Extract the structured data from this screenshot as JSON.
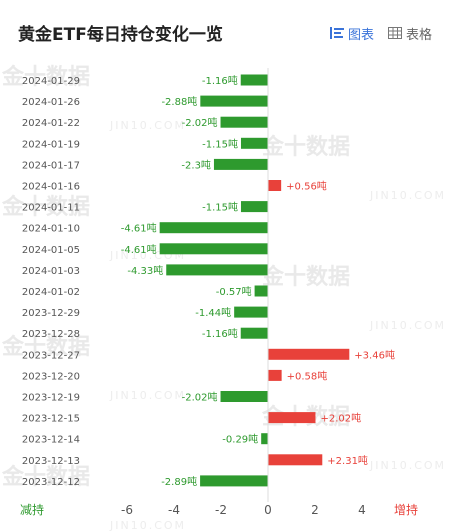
{
  "header": {
    "title": "黄金ETF每日持仓变化一览",
    "chart_tab": "图表",
    "table_tab": "表格"
  },
  "colors": {
    "positive": "#e8413a",
    "negative": "#2e9a2e",
    "tab_active": "#3a73d9"
  },
  "watermark": {
    "logo": "金十数据",
    "domain": "JIN10.COM"
  },
  "chart_data": {
    "type": "bar",
    "orientation": "horizontal",
    "title": "黄金ETF每日持仓变化一览",
    "unit": "吨",
    "categories": [
      "2024-01-29",
      "2024-01-26",
      "2024-01-22",
      "2024-01-19",
      "2024-01-17",
      "2024-01-16",
      "2024-01-11",
      "2024-01-10",
      "2024-01-05",
      "2024-01-03",
      "2024-01-02",
      "2023-12-29",
      "2023-12-28",
      "2023-12-27",
      "2023-12-20",
      "2023-12-19",
      "2023-12-15",
      "2023-12-14",
      "2023-12-13",
      "2023-12-12"
    ],
    "values": [
      -1.16,
      -2.88,
      -2.02,
      -1.15,
      -2.3,
      0.56,
      -1.15,
      -4.61,
      -4.61,
      -4.33,
      -0.57,
      -1.44,
      -1.16,
      3.46,
      0.58,
      -2.02,
      2.02,
      -0.29,
      2.31,
      -2.89
    ],
    "labels": [
      "-1.16吨",
      "-2.88吨",
      "-2.02吨",
      "-1.15吨",
      "-2.3吨",
      "+0.56吨",
      "-1.15吨",
      "-4.61吨",
      "-4.61吨",
      "-4.33吨",
      "-0.57吨",
      "-1.44吨",
      "-1.16吨",
      "+3.46吨",
      "+0.58吨",
      "-2.02吨",
      "+2.02吨",
      "-0.29吨",
      "+2.31吨",
      "-2.89吨"
    ],
    "x_ticks": [
      "-6",
      "-4",
      "-2",
      "0",
      "2",
      "4"
    ],
    "x_tick_values": [
      -6,
      -4,
      -2,
      0,
      2,
      4
    ],
    "xlim": [
      -6,
      4
    ],
    "left_end_label": "减持",
    "right_end_label": "增持"
  }
}
